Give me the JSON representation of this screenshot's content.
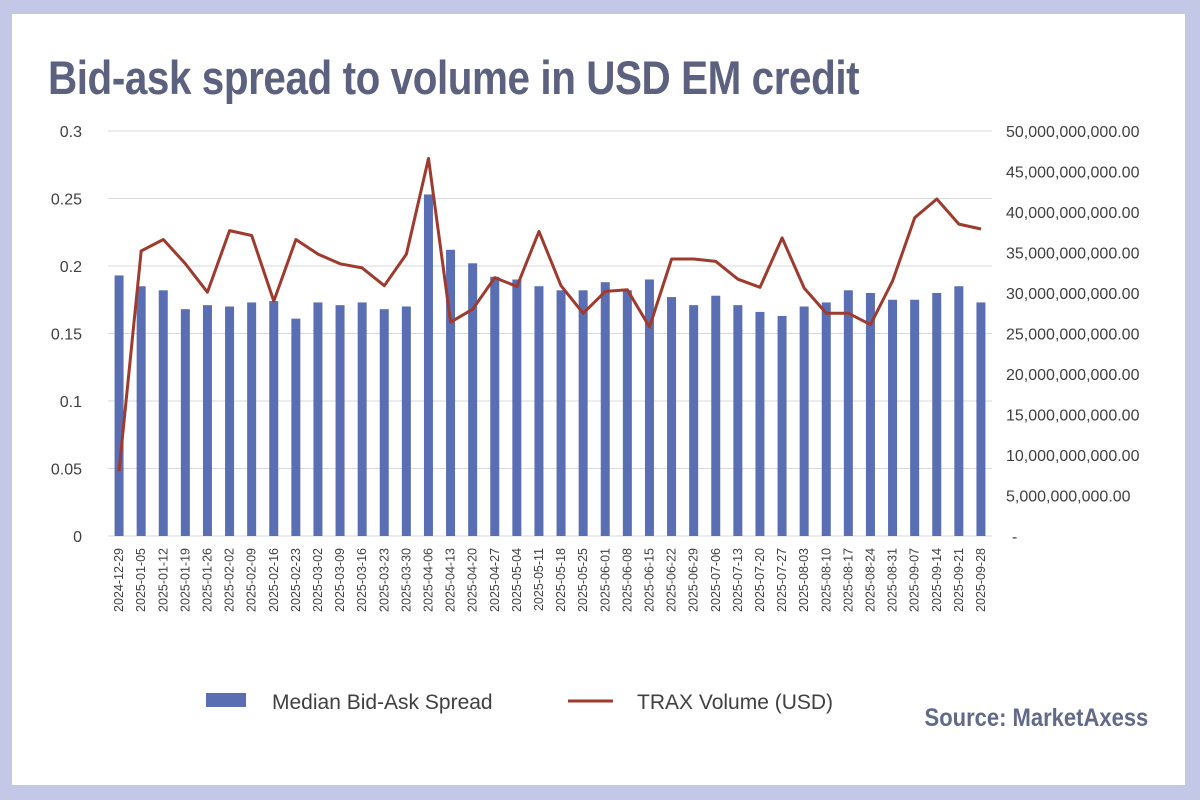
{
  "title": "Bid-ask spread to volume in USD EM credit",
  "source": "Source: MarketAxess",
  "colors": {
    "bars": "#5a6eb4",
    "line": "#9e3b2e",
    "grid": "#d9d9d9",
    "title": "#5c6180"
  },
  "chart_data": {
    "type": "bar+line",
    "title": "Bid-ask spread to volume in USD EM credit",
    "categories": [
      "2024-12-29",
      "2025-01-05",
      "2025-01-12",
      "2025-01-19",
      "2025-01-26",
      "2025-02-02",
      "2025-02-09",
      "2025-02-16",
      "2025-02-23",
      "2025-03-02",
      "2025-03-09",
      "2025-03-16",
      "2025-03-23",
      "2025-03-30",
      "2025-04-06",
      "2025-04-13",
      "2025-04-20",
      "2025-04-27",
      "2025-05-04",
      "2025-05-11",
      "2025-05-18",
      "2025-05-25",
      "2025-06-01",
      "2025-06-08",
      "2025-06-15",
      "2025-06-22",
      "2025-06-29",
      "2025-07-06",
      "2025-07-13",
      "2025-07-20",
      "2025-07-27",
      "2025-08-03",
      "2025-08-10",
      "2025-08-17",
      "2025-08-24",
      "2025-08-31",
      "2025-09-07",
      "2025-09-14",
      "2025-09-21",
      "2025-09-28"
    ],
    "series": [
      {
        "name": "Median Bid-Ask Spread",
        "kind": "bar",
        "axis": "left",
        "values": [
          0.193,
          0.185,
          0.182,
          0.168,
          0.171,
          0.17,
          0.173,
          0.174,
          0.161,
          0.173,
          0.171,
          0.173,
          0.168,
          0.17,
          0.253,
          0.212,
          0.202,
          0.192,
          0.19,
          0.185,
          0.182,
          0.182,
          0.188,
          0.182,
          0.19,
          0.177,
          0.171,
          0.178,
          0.171,
          0.166,
          0.163,
          0.17,
          0.173,
          0.182,
          0.18,
          0.175,
          0.175,
          0.18,
          0.185,
          0.173
        ]
      },
      {
        "name": "TRAX Volume (USD)",
        "kind": "line",
        "axis": "right",
        "values": [
          8000000000,
          35200000000,
          36600000000,
          33600000000,
          30100000000,
          37700000000,
          37100000000,
          29000000000,
          36600000000,
          34800000000,
          33600000000,
          33100000000,
          30900000000,
          34800000000,
          46600000000,
          26400000000,
          28000000000,
          31900000000,
          30800000000,
          37600000000,
          30900000000,
          27500000000,
          30200000000,
          30400000000,
          25800000000,
          34200000000,
          34200000000,
          33900000000,
          31700000000,
          30700000000,
          36800000000,
          30600000000,
          27500000000,
          27500000000,
          26100000000,
          31500000000,
          39300000000,
          41600000000,
          38500000000,
          37900000000
        ]
      }
    ],
    "y_left": {
      "min": 0,
      "max": 0.3,
      "ticks": [
        0,
        0.05,
        0.1,
        0.15,
        0.2,
        0.25,
        0.3
      ],
      "tick_labels": [
        "0",
        "0.05",
        "0.1",
        "0.15",
        "0.2",
        "0.25",
        "0.3"
      ]
    },
    "y_right": {
      "min": 0,
      "max": 50000000000,
      "ticks": [
        0,
        5000000000,
        10000000000,
        15000000000,
        20000000000,
        25000000000,
        30000000000,
        35000000000,
        40000000000,
        45000000000,
        50000000000
      ],
      "tick_labels": [
        "-",
        "5,000,000,000.00",
        "10,000,000,000.00",
        "15,000,000,000.00",
        "20,000,000,000.00",
        "25,000,000,000.00",
        "30,000,000,000.00",
        "35,000,000,000.00",
        "40,000,000,000.00",
        "45,000,000,000.00",
        "50,000,000,000.00"
      ]
    },
    "grid": true,
    "legend": {
      "position": "bottom",
      "entries": [
        "Median Bid-Ask Spread",
        "TRAX Volume (USD)"
      ]
    }
  }
}
